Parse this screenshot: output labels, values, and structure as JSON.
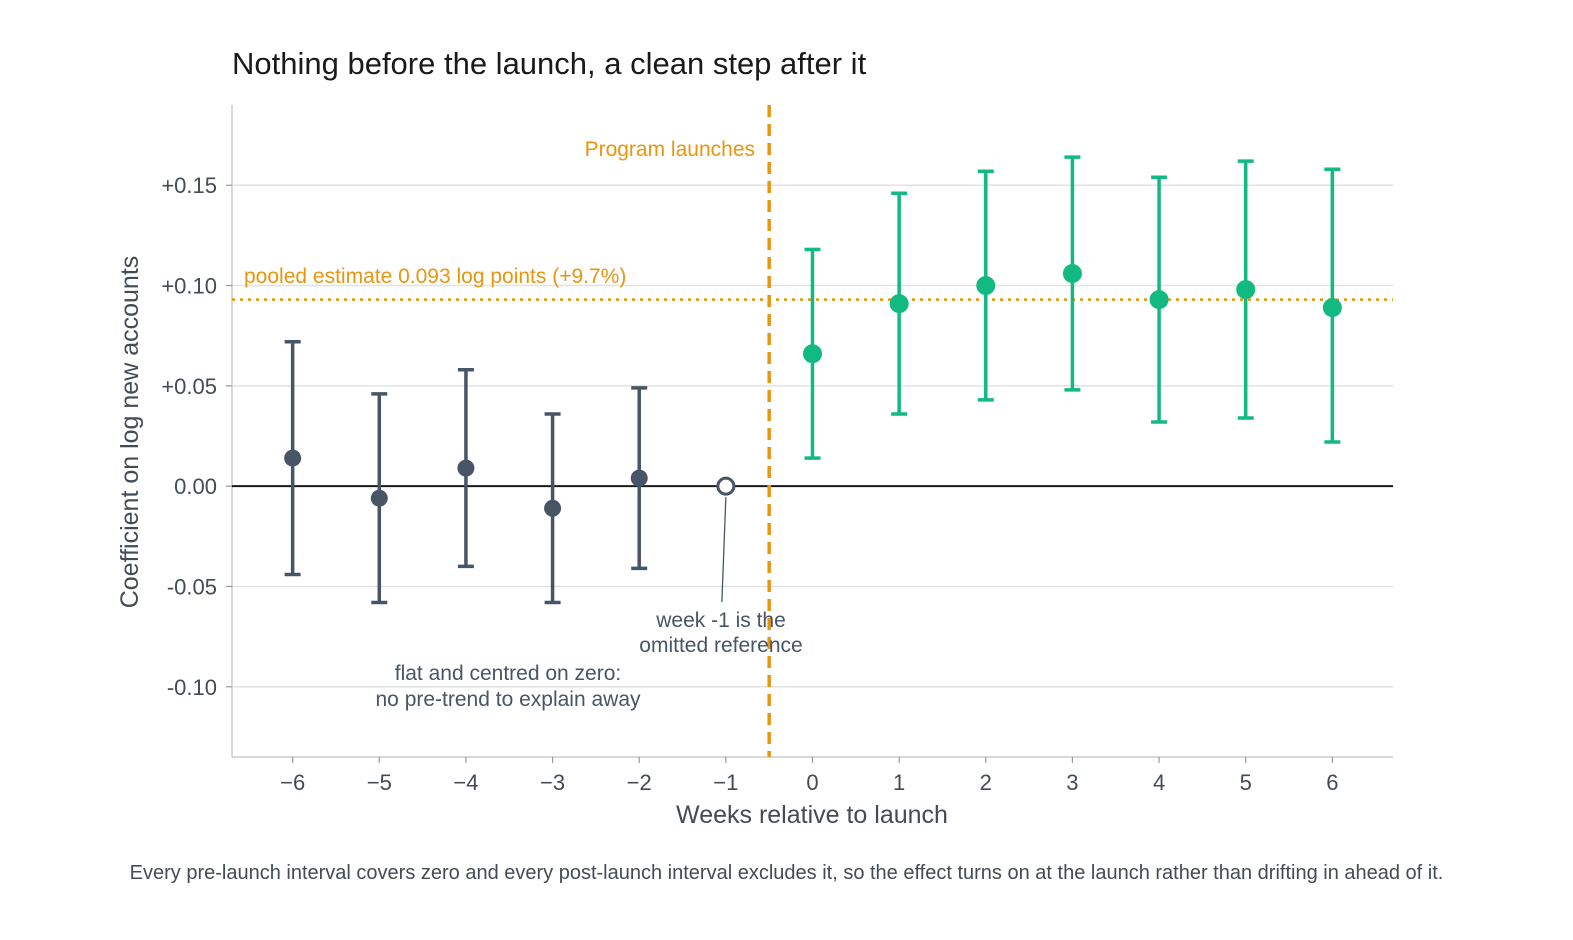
{
  "caption": "Every pre-launch interval covers zero and every post-launch interval excludes it, so the effect turns on at the launch rather than drifting in ahead of it.",
  "colors": {
    "pre": "#485566",
    "post": "#12b981",
    "launch": "#e8960f",
    "grid": "#e2e2e2",
    "axis": "#cccccc",
    "zero": "#1a1a1a"
  },
  "chart_data": {
    "type": "scatter",
    "title": "Nothing before the launch, a clean step after it",
    "xlabel": "Weeks relative to launch",
    "ylabel": "Coefficient on log new accounts",
    "xlim": [
      -6.7,
      6.7
    ],
    "ylim": [
      -0.135,
      0.19
    ],
    "grid": true,
    "x_ticks": [
      -6,
      -5,
      -4,
      -3,
      -2,
      -1,
      0,
      1,
      2,
      3,
      4,
      5,
      6
    ],
    "x_tick_labels": [
      "−6",
      "−5",
      "−4",
      "−3",
      "−2",
      "−1",
      "0",
      "1",
      "2",
      "3",
      "4",
      "5",
      "6"
    ],
    "y_ticks": [
      -0.1,
      -0.05,
      0.0,
      0.05,
      0.1,
      0.15
    ],
    "y_tick_labels": [
      "-0.10",
      "-0.05",
      "0.00",
      "+0.05",
      "+0.10",
      "+0.15"
    ],
    "points": [
      {
        "week": -6,
        "estimate": 0.014,
        "lower": -0.044,
        "upper": 0.072,
        "period": "pre"
      },
      {
        "week": -5,
        "estimate": -0.006,
        "lower": -0.058,
        "upper": 0.046,
        "period": "pre"
      },
      {
        "week": -4,
        "estimate": 0.009,
        "lower": -0.04,
        "upper": 0.058,
        "period": "pre"
      },
      {
        "week": -3,
        "estimate": -0.011,
        "lower": -0.058,
        "upper": 0.036,
        "period": "pre"
      },
      {
        "week": -2,
        "estimate": 0.004,
        "lower": -0.041,
        "upper": 0.049,
        "period": "pre"
      },
      {
        "week": -1,
        "estimate": 0.0,
        "period": "reference"
      },
      {
        "week": 0,
        "estimate": 0.066,
        "lower": 0.014,
        "upper": 0.118,
        "period": "post"
      },
      {
        "week": 1,
        "estimate": 0.091,
        "lower": 0.036,
        "upper": 0.146,
        "period": "post"
      },
      {
        "week": 2,
        "estimate": 0.1,
        "lower": 0.043,
        "upper": 0.157,
        "period": "post"
      },
      {
        "week": 3,
        "estimate": 0.106,
        "lower": 0.048,
        "upper": 0.164,
        "period": "post"
      },
      {
        "week": 4,
        "estimate": 0.093,
        "lower": 0.032,
        "upper": 0.154,
        "period": "post"
      },
      {
        "week": 5,
        "estimate": 0.098,
        "lower": 0.034,
        "upper": 0.162,
        "period": "post"
      },
      {
        "week": 6,
        "estimate": 0.089,
        "lower": 0.022,
        "upper": 0.158,
        "period": "post"
      }
    ],
    "launch_x": -0.5,
    "pooled_estimate": 0.093,
    "annotations": {
      "launch": "Program launches",
      "pooled": "pooled estimate  0.093 log points  (+9.7%)",
      "reference_line1": "week -1 is the",
      "reference_line2": "omitted reference",
      "pretrend_line1": "flat and centred on zero:",
      "pretrend_line2": "no pre-trend to explain away"
    }
  }
}
